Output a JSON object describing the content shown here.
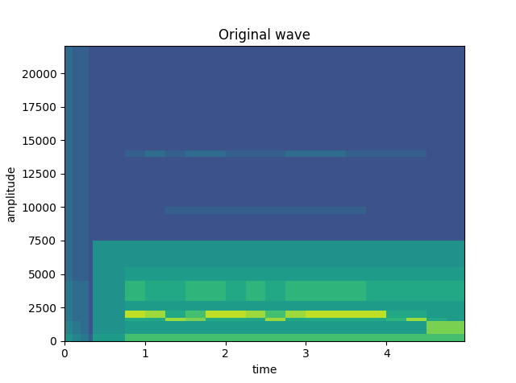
{
  "chart_data": {
    "type": "heatmap",
    "title": "Original wave",
    "x_label": "time",
    "y_label": "amplitude",
    "color": "viridis",
    "color_range": [
      0,
      1
    ],
    "xlim": [
      0,
      4.97
    ],
    "xticks": [
      0,
      1,
      2,
      3,
      4
    ],
    "ylim": [
      0,
      22050
    ],
    "yticks": [
      0,
      2500,
      5000,
      7500,
      10000,
      12500,
      15000,
      17500,
      20000
    ],
    "x_edges": [
      0,
      0.1,
      0.2,
      0.3,
      0.35,
      0.75,
      1.0,
      1.25,
      1.5,
      1.75,
      2.0,
      2.25,
      2.5,
      2.75,
      3.0,
      3.25,
      3.5,
      3.75,
      4.0,
      4.25,
      4.5,
      4.75,
      4.97
    ],
    "y_edges": [
      0,
      500,
      1500,
      1750,
      2250,
      3000,
      4500,
      5500,
      7500,
      9500,
      10000,
      13750,
      14250,
      22050
    ],
    "cells": [
      [
        0.5,
        0.45,
        0.4,
        0.3,
        0.55,
        0.7,
        0.7,
        0.7,
        0.7,
        0.7,
        0.7,
        0.7,
        0.7,
        0.7,
        0.7,
        0.7,
        0.7,
        0.7,
        0.7,
        0.7,
        0.7,
        0.7
      ],
      [
        0.45,
        0.4,
        0.35,
        0.25,
        0.5,
        0.55,
        0.55,
        0.55,
        0.55,
        0.55,
        0.55,
        0.55,
        0.55,
        0.55,
        0.55,
        0.55,
        0.55,
        0.55,
        0.55,
        0.55,
        0.8,
        0.8
      ],
      [
        0.4,
        0.35,
        0.35,
        0.25,
        0.5,
        0.6,
        0.6,
        0.85,
        0.8,
        0.6,
        0.6,
        0.6,
        0.85,
        0.6,
        0.6,
        0.6,
        0.6,
        0.6,
        0.65,
        0.85,
        0.6,
        0.55
      ],
      [
        0.4,
        0.35,
        0.35,
        0.25,
        0.5,
        0.9,
        0.85,
        0.6,
        0.7,
        0.9,
        0.9,
        0.85,
        0.7,
        0.85,
        0.9,
        0.9,
        0.9,
        0.9,
        0.6,
        0.6,
        0.55,
        0.55
      ],
      [
        0.4,
        0.35,
        0.35,
        0.25,
        0.5,
        0.55,
        0.55,
        0.55,
        0.55,
        0.55,
        0.55,
        0.55,
        0.55,
        0.55,
        0.55,
        0.55,
        0.55,
        0.55,
        0.55,
        0.55,
        0.55,
        0.55
      ],
      [
        0.4,
        0.35,
        0.35,
        0.25,
        0.5,
        0.65,
        0.6,
        0.6,
        0.65,
        0.65,
        0.6,
        0.65,
        0.6,
        0.65,
        0.65,
        0.65,
        0.65,
        0.6,
        0.6,
        0.6,
        0.6,
        0.6
      ],
      [
        0.35,
        0.3,
        0.3,
        0.25,
        0.5,
        0.55,
        0.55,
        0.55,
        0.55,
        0.55,
        0.55,
        0.55,
        0.55,
        0.55,
        0.55,
        0.55,
        0.55,
        0.55,
        0.55,
        0.55,
        0.55,
        0.55
      ],
      [
        0.35,
        0.3,
        0.3,
        0.25,
        0.5,
        0.5,
        0.5,
        0.5,
        0.5,
        0.5,
        0.5,
        0.5,
        0.5,
        0.5,
        0.5,
        0.5,
        0.5,
        0.5,
        0.5,
        0.5,
        0.5,
        0.5
      ],
      [
        0.35,
        0.3,
        0.3,
        0.25,
        0.25,
        0.25,
        0.25,
        0.25,
        0.25,
        0.25,
        0.25,
        0.25,
        0.25,
        0.25,
        0.25,
        0.25,
        0.25,
        0.25,
        0.25,
        0.25,
        0.25,
        0.25
      ],
      [
        0.35,
        0.3,
        0.3,
        0.25,
        0.25,
        0.25,
        0.25,
        0.3,
        0.3,
        0.3,
        0.3,
        0.3,
        0.3,
        0.3,
        0.3,
        0.3,
        0.3,
        0.25,
        0.25,
        0.25,
        0.25,
        0.25
      ],
      [
        0.35,
        0.3,
        0.3,
        0.25,
        0.25,
        0.25,
        0.25,
        0.25,
        0.25,
        0.25,
        0.25,
        0.25,
        0.25,
        0.25,
        0.25,
        0.25,
        0.25,
        0.25,
        0.25,
        0.25,
        0.25,
        0.25
      ],
      [
        0.35,
        0.3,
        0.3,
        0.25,
        0.25,
        0.3,
        0.35,
        0.3,
        0.35,
        0.35,
        0.3,
        0.3,
        0.3,
        0.35,
        0.35,
        0.35,
        0.3,
        0.3,
        0.3,
        0.3,
        0.25,
        0.25
      ],
      [
        0.35,
        0.3,
        0.3,
        0.25,
        0.25,
        0.25,
        0.25,
        0.25,
        0.25,
        0.25,
        0.25,
        0.25,
        0.25,
        0.25,
        0.25,
        0.25,
        0.25,
        0.25,
        0.25,
        0.25,
        0.25,
        0.25
      ]
    ]
  }
}
